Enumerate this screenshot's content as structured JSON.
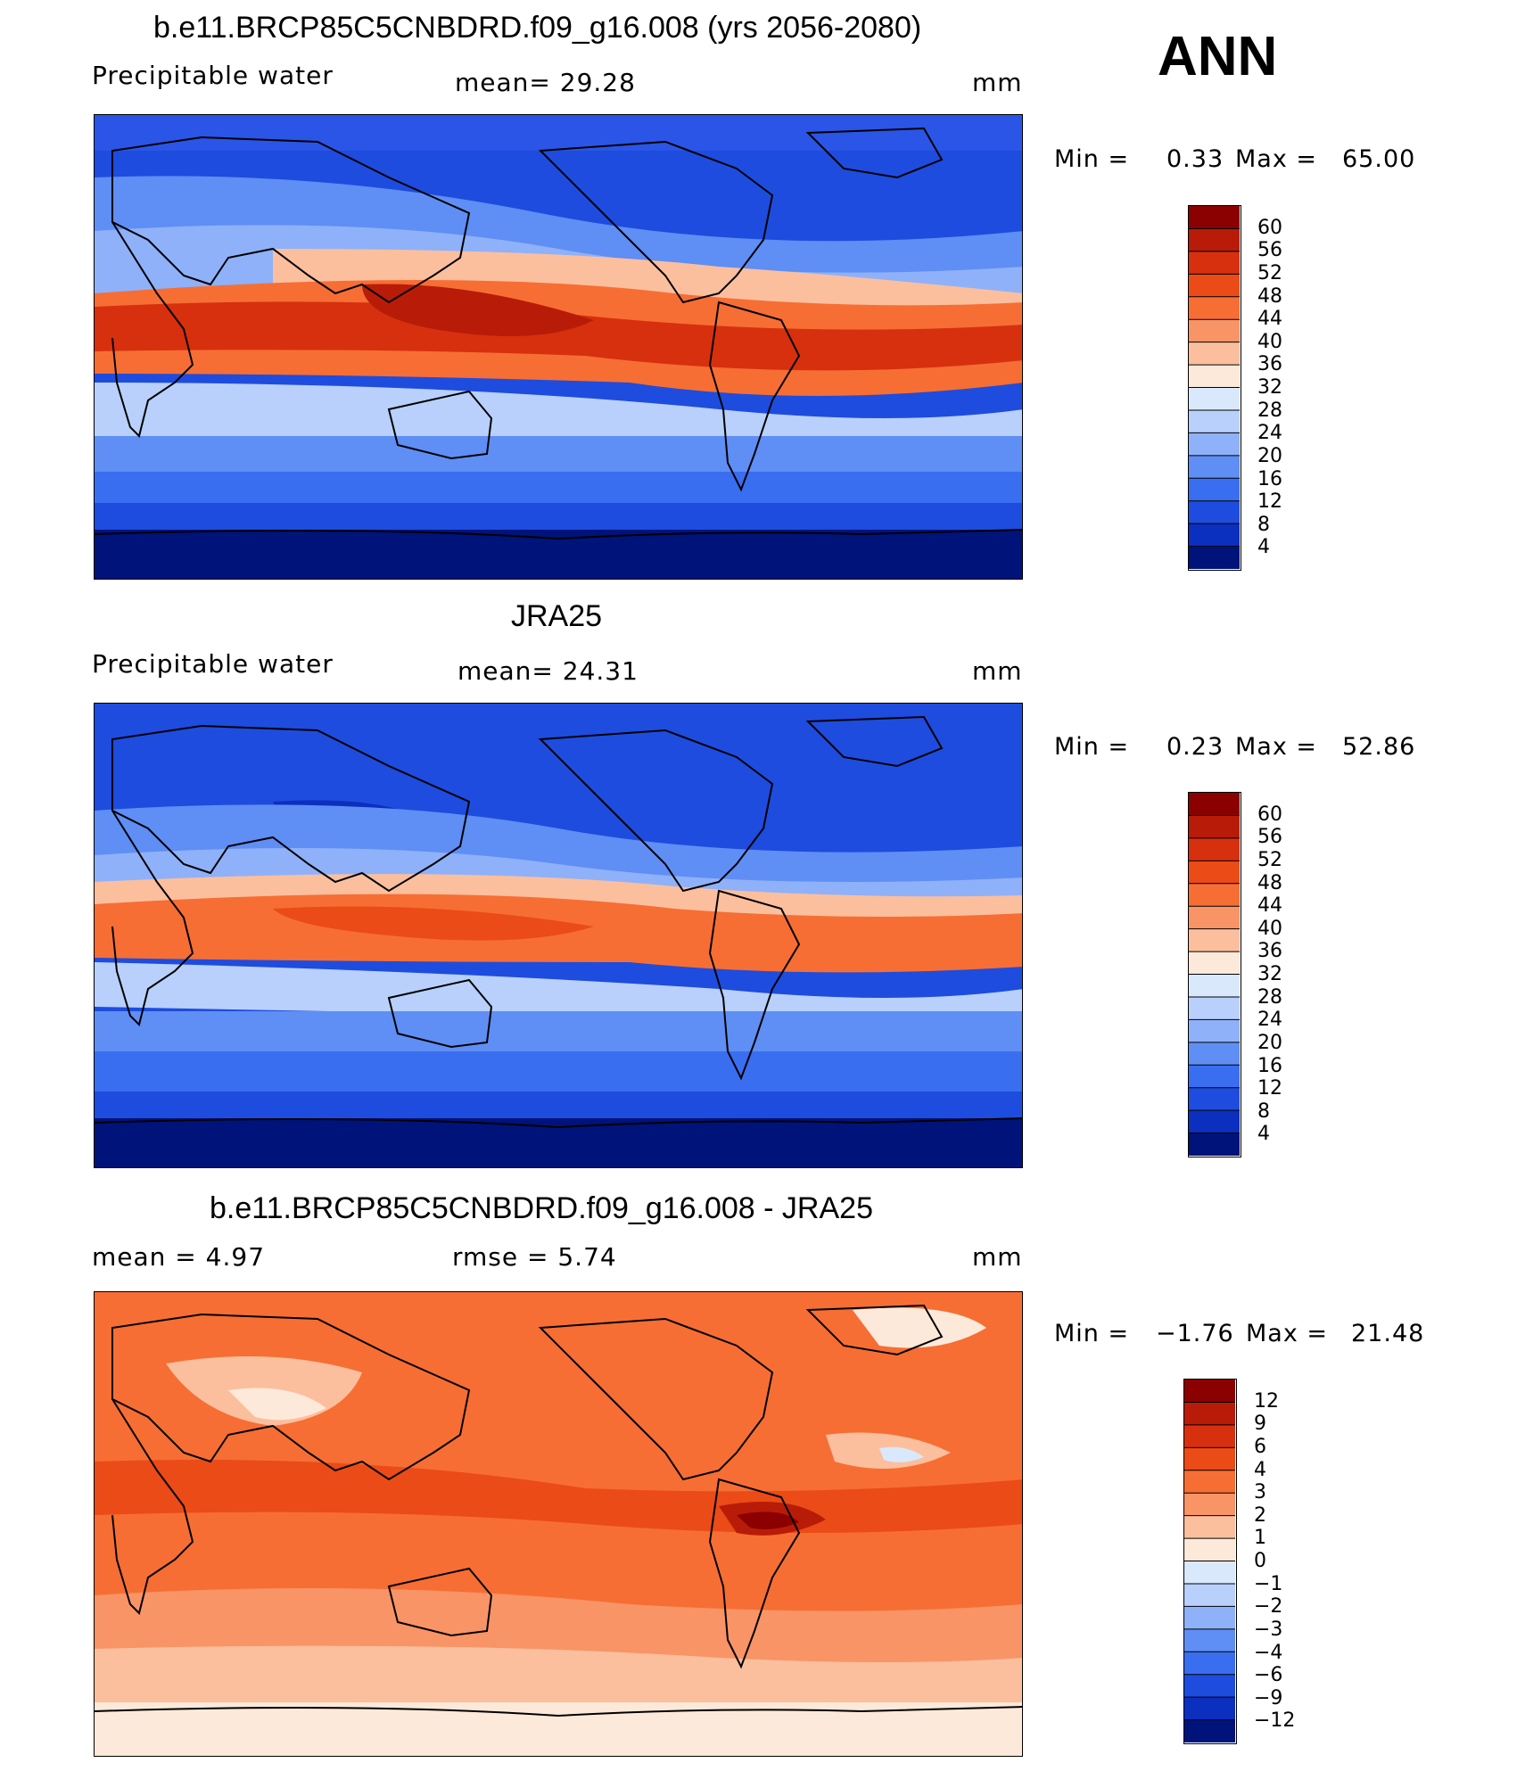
{
  "season": "ANN",
  "panels": [
    {
      "title": "b.e11.BRCP85C5CNBDRD.f09_g16.008 (yrs 2056-2080)",
      "left_label": "Precipitable  water",
      "mid_label": "mean=   29.28",
      "units": "mm",
      "min_label": "Min  =",
      "min_value": "0.33",
      "max_label": "Max  =",
      "max_value": "65.00",
      "colorbar_ticks": [
        "60",
        "56",
        "52",
        "48",
        "44",
        "40",
        "36",
        "32",
        "28",
        "24",
        "20",
        "16",
        "12",
        "8",
        "4"
      ],
      "colorbar_colors": [
        "#8b0000",
        "#b81c08",
        "#d7300e",
        "#eb4b17",
        "#f66e34",
        "#f99466",
        "#fbbf9e",
        "#fde9d9",
        "#dae8fb",
        "#b8d0fb",
        "#8fb1f9",
        "#5f8ef4",
        "#3a6ef0",
        "#1e4cde",
        "#0b2fbe",
        "#00137a"
      ]
    },
    {
      "title": "JRA25",
      "left_label": "Precipitable  water",
      "mid_label": "mean=   24.31",
      "units": "mm",
      "min_label": "Min  =",
      "min_value": "0.23",
      "max_label": "Max  =",
      "max_value": "52.86",
      "colorbar_ticks": [
        "60",
        "56",
        "52",
        "48",
        "44",
        "40",
        "36",
        "32",
        "28",
        "24",
        "20",
        "16",
        "12",
        "8",
        "4"
      ],
      "colorbar_colors": [
        "#8b0000",
        "#b81c08",
        "#d7300e",
        "#eb4b17",
        "#f66e34",
        "#f99466",
        "#fbbf9e",
        "#fde9d9",
        "#dae8fb",
        "#b8d0fb",
        "#8fb1f9",
        "#5f8ef4",
        "#3a6ef0",
        "#1e4cde",
        "#0b2fbe",
        "#00137a"
      ]
    },
    {
      "title": "b.e11.BRCP85C5CNBDRD.f09_g16.008 - JRA25",
      "left_label": "mean  =      4.97",
      "mid_label": "rmse  =      5.74",
      "units": "mm",
      "min_label": "Min  =",
      "min_value": "−1.76",
      "max_label": "Max  =",
      "max_value": "21.48",
      "colorbar_ticks": [
        "12",
        "9",
        "6",
        "4",
        "3",
        "2",
        "1",
        "0",
        "−1",
        "−2",
        "−3",
        "−4",
        "−6",
        "−9",
        "−12"
      ],
      "colorbar_colors": [
        "#8b0000",
        "#b81c08",
        "#d7300e",
        "#eb4b17",
        "#f66e34",
        "#f99466",
        "#fbbf9e",
        "#fde9d9",
        "#dae8fb",
        "#b8d0fb",
        "#8fb1f9",
        "#5f8ef4",
        "#3a6ef0",
        "#1e4cde",
        "#0b2fbe",
        "#00137a"
      ]
    }
  ]
}
